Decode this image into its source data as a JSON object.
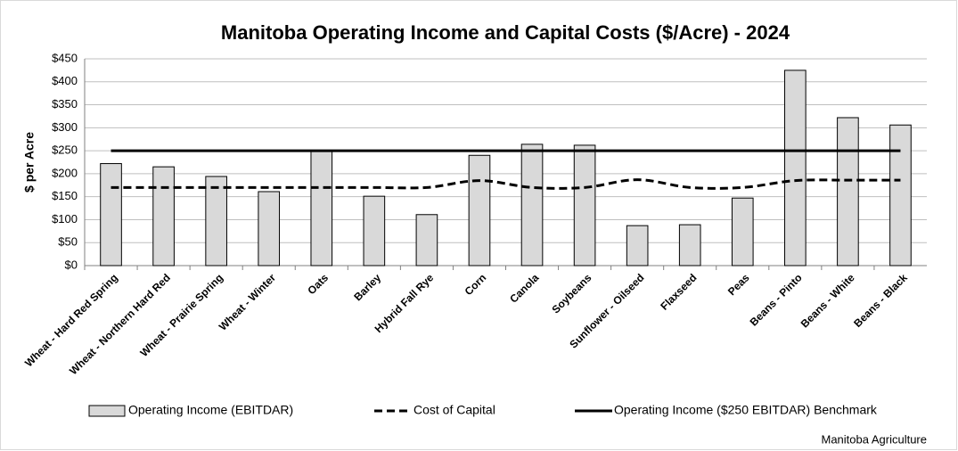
{
  "chart_data": {
    "type": "bar",
    "title": "Manitoba Operating Income and Capital Costs ($/Acre) - 2024",
    "y_label": "$ per Acre",
    "source": "Manitoba Agriculture",
    "categories": [
      "Wheat - Hard Red Spring",
      "Wheat - Northern Hard Red",
      "Wheat - Prairie Spring",
      "Wheat - Winter",
      "Oats",
      "Barley",
      "Hybrid Fall Rye",
      "Corn",
      "Canola",
      "Soybeans",
      "Sunflower - Oilseed",
      "Flaxseed",
      "Peas",
      "Beans - Pinto",
      "Beans - White",
      "Beans - Black"
    ],
    "series": [
      {
        "name": "Operating Income (EBITDAR)",
        "type": "bar",
        "color": "#d9d9d9",
        "values": [
          222,
          215,
          194,
          161,
          250,
          151,
          111,
          240,
          264,
          262,
          87,
          89,
          147,
          425,
          322,
          306
        ]
      },
      {
        "name": "Cost of Capital",
        "type": "line",
        "dash": true,
        "smooth": true,
        "color": "#000000",
        "values": [
          170,
          170,
          170,
          170,
          170,
          170,
          170,
          185,
          170,
          170,
          187,
          170,
          170,
          185,
          186,
          186
        ]
      },
      {
        "name": "Operating Income ($250 EBITDAR) Benchmark",
        "type": "line",
        "dash": false,
        "smooth": false,
        "color": "#000000",
        "values": [
          250,
          250,
          250,
          250,
          250,
          250,
          250,
          250,
          250,
          250,
          250,
          250,
          250,
          250,
          250,
          250
        ]
      }
    ],
    "ylim": [
      0,
      450
    ],
    "yticks": [
      {
        "value": 0,
        "label": "$0"
      },
      {
        "value": 50,
        "label": "$50"
      },
      {
        "value": 100,
        "label": "$100"
      },
      {
        "value": 150,
        "label": "$150"
      },
      {
        "value": 200,
        "label": "$200"
      },
      {
        "value": 250,
        "label": "$250"
      },
      {
        "value": 300,
        "label": "$300"
      },
      {
        "value": 350,
        "label": "$350"
      },
      {
        "value": 400,
        "label": "$400"
      },
      {
        "value": 450,
        "label": "$450"
      }
    ],
    "grid": true
  }
}
